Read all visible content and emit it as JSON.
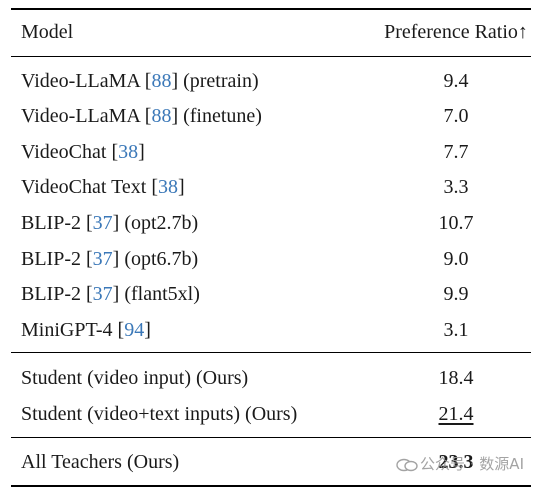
{
  "header": {
    "model": "Model",
    "metric": "Preference Ratio↑"
  },
  "rows": [
    {
      "pre": "Video-LLaMA ",
      "ref": "88",
      "post": "] (pretrain)",
      "value": "9.4"
    },
    {
      "pre": "Video-LLaMA ",
      "ref": "88",
      "post": "] (finetune)",
      "value": "7.0"
    },
    {
      "pre": "VideoChat ",
      "ref": "38",
      "post": "]",
      "value": "7.7"
    },
    {
      "pre": "VideoChat Text ",
      "ref": "38",
      "post": "]",
      "value": "3.3"
    },
    {
      "pre": "BLIP-2 ",
      "ref": "37",
      "post": "] (opt2.7b)",
      "value": "10.7"
    },
    {
      "pre": "BLIP-2 ",
      "ref": "37",
      "post": "] (opt6.7b)",
      "value": "9.0"
    },
    {
      "pre": "BLIP-2 ",
      "ref": "37",
      "post": "] (flant5xl)",
      "value": "9.9"
    },
    {
      "pre": "MiniGPT-4 ",
      "ref": "94",
      "post": "]",
      "value": "3.1"
    }
  ],
  "ours": [
    {
      "model": "Student (video input) (Ours)",
      "value": "18.4"
    },
    {
      "model": "Student (video+text inputs) (Ours)",
      "value": "21.4"
    }
  ],
  "teachers": {
    "model": "All Teachers (Ours)",
    "value": "23.3"
  },
  "watermark": "公众号 · 数源AI"
}
